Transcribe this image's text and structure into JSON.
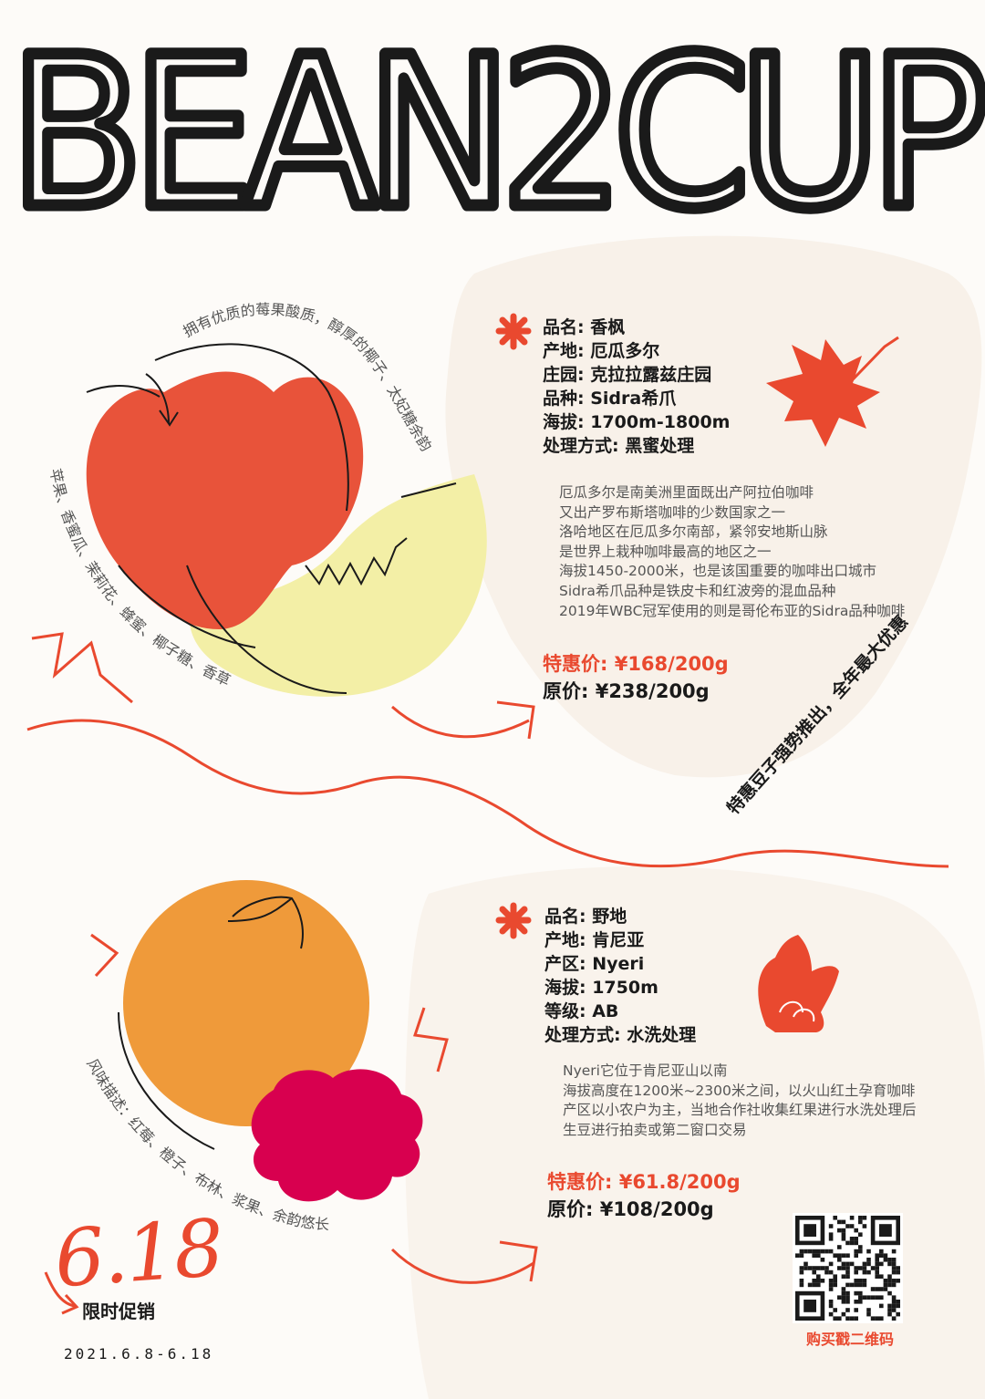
{
  "brand": {
    "title": "BEAN2CUP"
  },
  "colors": {
    "accent": "#e9492f",
    "apple": "#e8533a",
    "melon": "#f4f0a8",
    "orange": "#ef9a3a",
    "raspberry": "#d8004f",
    "text": "#1a1a1a",
    "muted": "#555555"
  },
  "product1": {
    "info": [
      "品名: 香枫",
      "产地: 厄瓜多尔",
      "庄园: 克拉拉露兹庄园",
      "品种: Sidra希爪",
      "海拔: 1700m-1800m",
      "处理方式: 黑蜜处理"
    ],
    "description": [
      "厄瓜多尔是南美洲里面既出产阿拉伯咖啡",
      "又出产罗布斯塔咖啡的少数国家之一",
      "洛哈地区在厄瓜多尔南部，紧邻安地斯山脉",
      "是世界上栽种咖啡最高的地区之一",
      "海拔1450-2000米，也是该国重要的咖啡出口城市",
      "Sidra希爪品种是铁皮卡和红波旁的混血品种",
      "2019年WBC冠军使用的则是哥伦布亚的Sidra品种咖啡"
    ],
    "sale_price": "特惠价: ¥168/200g",
    "original_price": "原价: ¥238/200g",
    "flavor_arc_top": "拥有优质的莓果酸质，醇厚的椰子、太妃糖余韵",
    "flavor_arc_left": "苹果、香蜜瓜、茉莉花、蜂蜜、椰子糖、香草",
    "icon": "maple-leaf-icon"
  },
  "slogan": "特惠豆子强势推出，全年最大优惠",
  "product2": {
    "info": [
      "品名: 野地",
      "产地: 肯尼亚",
      "产区: Nyeri",
      "海拔: 1750m",
      "等级: AB",
      "处理方式: 水洗处理"
    ],
    "description": [
      "Nyeri它位于肯尼亚山以南",
      "海拔高度在1200米~2300米之间，以火山红土孕育咖啡",
      "产区以小农户为主，当地合作社收集红果进行水洗处理后",
      "生豆进行拍卖或第二窗口交易"
    ],
    "sale_price": "特惠价: ¥61.8/200g",
    "original_price": "原价: ¥108/200g",
    "flavor_arc": "风味描述：红莓、橙子、布林、浆果、余韵悠长",
    "icon": "leaf-plant-icon"
  },
  "promo": {
    "date_big": "6.18",
    "label": "限时促销",
    "range": "2021.6.8-6.18"
  },
  "qr": {
    "label": "购买戳二维码"
  }
}
